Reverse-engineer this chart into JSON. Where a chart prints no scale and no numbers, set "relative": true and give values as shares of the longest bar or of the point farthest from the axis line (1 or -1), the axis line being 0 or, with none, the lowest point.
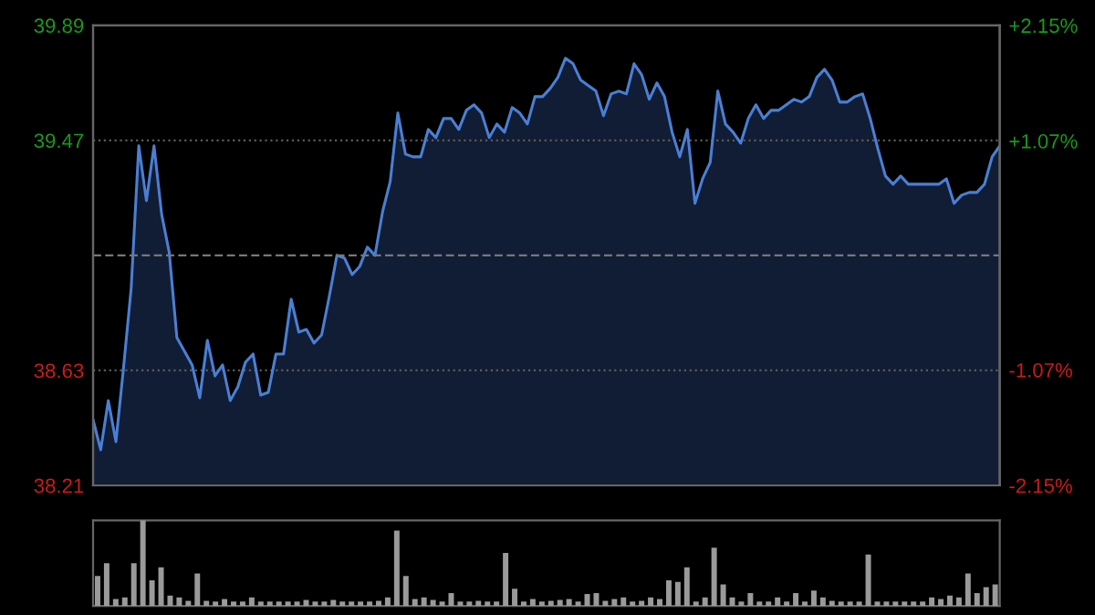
{
  "chart_data": [
    {
      "type": "area",
      "categories": [
        null,
        null,
        null,
        null,
        null,
        null,
        null,
        null,
        null,
        null,
        null,
        null,
        null,
        null,
        null,
        null,
        null,
        null,
        null,
        null,
        null,
        null,
        null,
        null,
        null,
        null,
        null,
        null,
        null,
        null,
        null,
        null,
        null,
        null,
        null,
        null,
        null,
        null,
        null,
        null,
        null,
        null,
        null,
        null,
        null,
        null,
        null,
        null,
        null,
        null,
        null,
        null,
        null,
        null,
        null,
        null,
        null,
        null,
        null,
        null,
        null,
        null,
        null,
        null,
        null,
        null,
        null,
        null,
        null,
        null,
        null,
        null,
        null,
        null,
        null,
        null,
        null,
        null,
        null,
        null,
        null,
        null,
        null,
        null,
        null,
        null,
        null,
        null,
        null,
        null,
        null,
        null,
        null,
        null,
        null,
        null,
        null,
        null,
        null,
        null,
        null,
        null,
        null,
        null,
        null,
        null,
        null,
        null,
        null,
        null,
        null,
        null,
        null,
        null,
        null,
        null,
        null,
        null,
        null,
        null
      ],
      "series": [
        {
          "color": "#4a7fd4",
          "values": [
            38.45,
            38.34,
            38.52,
            38.37,
            38.64,
            38.93,
            39.45,
            39.25,
            39.45,
            39.2,
            39.06,
            38.75,
            38.7,
            38.65,
            38.53,
            38.74,
            38.61,
            38.65,
            38.52,
            38.57,
            38.66,
            38.69,
            38.54,
            38.55,
            38.69,
            38.69,
            38.89,
            38.77,
            38.78,
            38.73,
            38.76,
            38.9,
            39.05,
            39.04,
            38.98,
            39.01,
            39.08,
            39.05,
            39.21,
            39.32,
            39.57,
            39.42,
            39.41,
            39.41,
            39.51,
            39.48,
            39.55,
            39.55,
            39.51,
            39.58,
            39.6,
            39.57,
            39.48,
            39.53,
            39.5,
            39.59,
            39.57,
            39.53,
            39.63,
            39.63,
            39.66,
            39.7,
            39.77,
            39.75,
            39.69,
            39.67,
            39.65,
            39.56,
            39.64,
            39.65,
            39.64,
            39.75,
            39.71,
            39.62,
            39.68,
            39.63,
            39.5,
            39.41,
            39.51,
            39.24,
            39.33,
            39.39,
            39.65,
            39.53,
            39.5,
            39.46,
            39.55,
            39.6,
            39.55,
            39.58,
            39.58,
            39.6,
            39.62,
            39.61,
            39.63,
            39.7,
            39.73,
            39.69,
            39.61,
            39.61,
            39.63,
            39.64,
            39.55,
            39.44,
            39.34,
            39.31,
            39.34,
            39.31,
            39.31,
            39.31,
            39.31,
            39.31,
            39.33,
            39.24,
            39.27,
            39.28,
            39.28,
            39.31,
            39.41,
            39.45
          ]
        }
      ],
      "ylim": [
        38.21,
        39.89
      ],
      "yticks": [
        38.21,
        38.63,
        39.47,
        39.89
      ],
      "y2lim": [
        -2.15,
        2.15
      ],
      "y2ticks": [
        {
          "value": -2.15,
          "label": "-2.15%"
        },
        {
          "value": -1.07,
          "label": "-1.07%"
        },
        {
          "value": 1.07,
          "label": "+1.07%"
        },
        {
          "value": 2.15,
          "label": "+2.15%"
        }
      ],
      "ref_lines": [
        {
          "axis": "y",
          "value": 39.05,
          "line_style": "dashed"
        }
      ],
      "grid": "y"
    },
    {
      "type": "bar",
      "relative": true,
      "categories": [
        null,
        null,
        null,
        null,
        null,
        null,
        null,
        null,
        null,
        null,
        null,
        null,
        null,
        null,
        null,
        null,
        null,
        null,
        null,
        null,
        null,
        null,
        null,
        null,
        null,
        null,
        null,
        null,
        null,
        null,
        null,
        null,
        null,
        null,
        null,
        null,
        null,
        null,
        null,
        null,
        null,
        null,
        null,
        null,
        null,
        null,
        null,
        null,
        null,
        null,
        null,
        null,
        null,
        null,
        null,
        null,
        null,
        null,
        null,
        null,
        null,
        null,
        null,
        null,
        null,
        null,
        null,
        null,
        null,
        null,
        null,
        null,
        null,
        null,
        null,
        null,
        null,
        null,
        null,
        null,
        null,
        null,
        null,
        null,
        null,
        null,
        null,
        null,
        null,
        null,
        null,
        null,
        null,
        null,
        null,
        null,
        null,
        null,
        null,
        null
      ],
      "color": "#9a9a9a",
      "values": [
        0.35,
        0.5,
        0.08,
        0.1,
        0.5,
        1.0,
        0.3,
        0.45,
        0.12,
        0.1,
        0.06,
        0.38,
        0.06,
        0.05,
        0.08,
        0.05,
        0.05,
        0.1,
        0.05,
        0.05,
        0.05,
        0.05,
        0.05,
        0.07,
        0.05,
        0.05,
        0.07,
        0.05,
        0.05,
        0.05,
        0.05,
        0.06,
        0.1,
        0.88,
        0.35,
        0.08,
        0.1,
        0.07,
        0.05,
        0.15,
        0.05,
        0.05,
        0.06,
        0.05,
        0.05,
        0.62,
        0.2,
        0.05,
        0.08,
        0.05,
        0.06,
        0.07,
        0.08,
        0.05,
        0.14,
        0.15,
        0.06,
        0.08,
        0.1,
        0.05,
        0.06,
        0.1,
        0.08,
        0.3,
        0.28,
        0.45,
        0.05,
        0.1,
        0.68,
        0.25,
        0.1,
        0.05,
        0.15,
        0.05,
        0.05,
        0.1,
        0.05,
        0.15,
        0.05,
        0.18,
        0.1,
        0.06,
        0.05,
        0.05,
        0.05,
        0.6,
        0.05,
        0.05,
        0.05,
        0.05,
        0.05,
        0.05,
        0.1,
        0.08,
        0.12,
        0.1,
        0.38,
        0.15,
        0.22,
        0.25
      ]
    }
  ]
}
